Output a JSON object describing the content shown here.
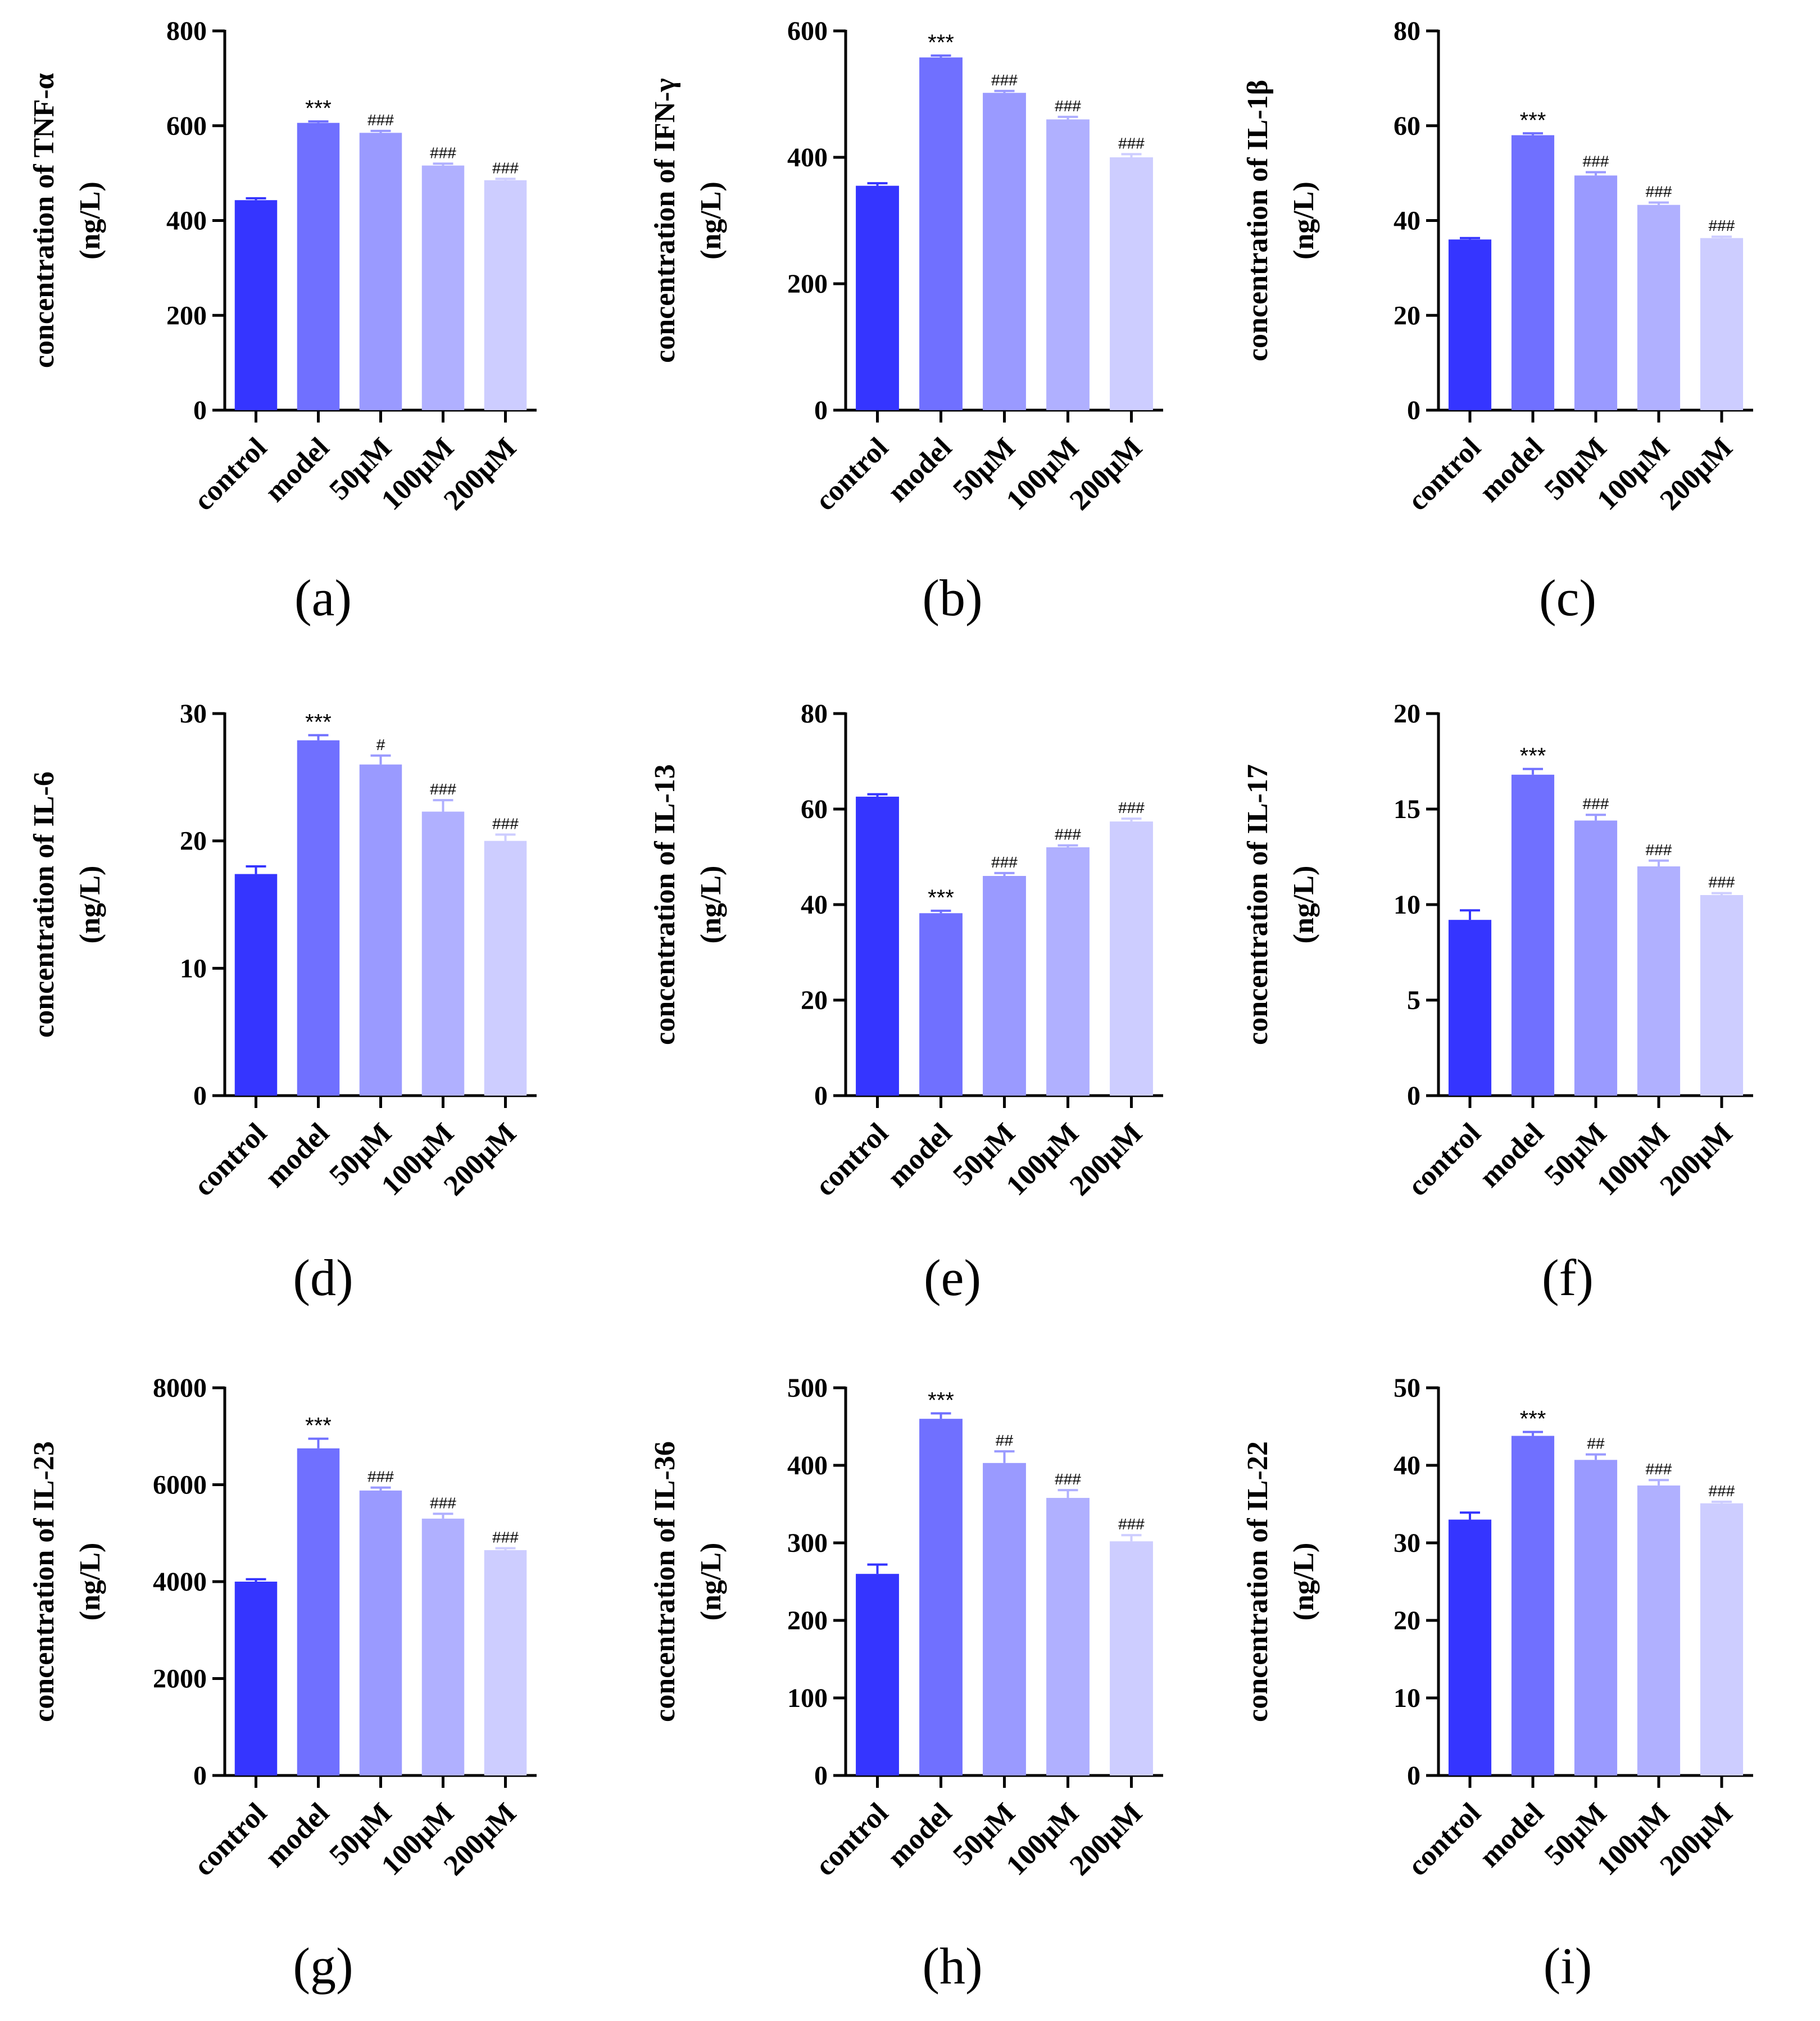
{
  "colors": {
    "bars": [
      "#3535ff",
      "#7070ff",
      "#9a9aff",
      "#b0b0ff",
      "#cdcdff"
    ],
    "axis": "#000000"
  },
  "chart_data": [
    {
      "panel": "(a)",
      "type": "bar",
      "categories": [
        "control",
        "model",
        "50μM",
        "100μM",
        "200μM"
      ],
      "values": [
        443,
        606,
        585,
        516,
        485
      ],
      "errors": [
        4,
        3,
        4,
        4,
        3
      ],
      "annotations": [
        "",
        "***",
        "###",
        "###",
        "###"
      ],
      "ylabel_line1": "concentration of TNF-α",
      "ylabel_line2": "(ng/L)",
      "ylim": [
        0,
        800
      ],
      "yticks": [
        "0",
        "200",
        "400",
        "600",
        "800"
      ]
    },
    {
      "panel": "(b)",
      "type": "bar",
      "categories": [
        "control",
        "model",
        "50μM",
        "100μM",
        "200μM"
      ],
      "values": [
        355,
        558,
        502,
        460,
        400
      ],
      "errors": [
        4,
        3,
        3,
        4,
        5
      ],
      "annotations": [
        "",
        "***",
        "###",
        "###",
        "###"
      ],
      "ylabel_line1": "concentration of IFN-γ",
      "ylabel_line2": "(ng/L)",
      "ylim": [
        0,
        600
      ],
      "yticks": [
        "0",
        "200",
        "400",
        "600"
      ]
    },
    {
      "panel": "(c)",
      "type": "bar",
      "categories": [
        "control",
        "model",
        "50μM",
        "100μM",
        "200μM"
      ],
      "values": [
        36,
        58,
        49.5,
        43.3,
        36.3
      ],
      "errors": [
        0.3,
        0.4,
        0.7,
        0.5,
        0.3
      ],
      "annotations": [
        "",
        "***",
        "###",
        "###",
        "###"
      ],
      "ylabel_line1": "concentration of IL-1β",
      "ylabel_line2": "(ng/L)",
      "ylim": [
        0,
        80
      ],
      "yticks": [
        "0",
        "20",
        "40",
        "60",
        "80"
      ]
    },
    {
      "panel": "(d)",
      "type": "bar",
      "categories": [
        "control",
        "model",
        "50μM",
        "100μM",
        "200μM"
      ],
      "values": [
        17.4,
        27.9,
        26,
        22.3,
        20
      ],
      "errors": [
        0.6,
        0.4,
        0.7,
        0.9,
        0.5
      ],
      "annotations": [
        "",
        "***",
        "#",
        "###",
        "###"
      ],
      "ylabel_line1": "concentration of IL-6",
      "ylabel_line2": "(ng/L)",
      "ylim": [
        0,
        30
      ],
      "yticks": [
        "0",
        "10",
        "20",
        "30"
      ]
    },
    {
      "panel": "(e)",
      "type": "bar",
      "categories": [
        "control",
        "model",
        "50μM",
        "100μM",
        "200μM"
      ],
      "values": [
        62.6,
        38.2,
        46,
        52,
        57.4
      ],
      "errors": [
        0.5,
        0.5,
        0.6,
        0.4,
        0.6
      ],
      "annotations": [
        "",
        "***",
        "###",
        "###",
        "###"
      ],
      "ylabel_line1": "concentration of IL-13",
      "ylabel_line2": "(ng/L)",
      "ylim": [
        0,
        80
      ],
      "yticks": [
        "0",
        "20",
        "40",
        "60",
        "80"
      ]
    },
    {
      "panel": "(f)",
      "type": "bar",
      "categories": [
        "control",
        "model",
        "50μM",
        "100μM",
        "200μM"
      ],
      "values": [
        9.2,
        16.8,
        14.4,
        12,
        10.5
      ],
      "errors": [
        0.5,
        0.3,
        0.3,
        0.3,
        0.1
      ],
      "annotations": [
        "",
        "***",
        "###",
        "###",
        "###"
      ],
      "ylabel_line1": "concentration of IL-17",
      "ylabel_line2": "(ng/L)",
      "ylim": [
        0,
        20
      ],
      "yticks": [
        "0",
        "5",
        "10",
        "15",
        "20"
      ]
    },
    {
      "panel": "(g)",
      "type": "bar",
      "categories": [
        "control",
        "model",
        "50μM",
        "100μM",
        "200μM"
      ],
      "values": [
        4000,
        6750,
        5880,
        5300,
        4650
      ],
      "errors": [
        50,
        200,
        60,
        100,
        40
      ],
      "annotations": [
        "",
        "***",
        "###",
        "###",
        "###"
      ],
      "ylabel_line1": "concentration of IL-23",
      "ylabel_line2": "(ng/L)",
      "ylim": [
        0,
        8000
      ],
      "yticks": [
        "0",
        "2000",
        "4000",
        "6000",
        "8000"
      ]
    },
    {
      "panel": "(h)",
      "type": "bar",
      "categories": [
        "control",
        "model",
        "50μM",
        "100μM",
        "200μM"
      ],
      "values": [
        260,
        460,
        403,
        358,
        302
      ],
      "errors": [
        12,
        7,
        15,
        10,
        8
      ],
      "annotations": [
        "",
        "***",
        "##",
        "###",
        "###"
      ],
      "ylabel_line1": "concentration of IL-36",
      "ylabel_line2": "(ng/L)",
      "ylim": [
        0,
        500
      ],
      "yticks": [
        "0",
        "100",
        "200",
        "300",
        "400",
        "500"
      ]
    },
    {
      "panel": "(i)",
      "type": "bar",
      "categories": [
        "control",
        "model",
        "50μM",
        "100μM",
        "200μM"
      ],
      "values": [
        33,
        43.8,
        40.7,
        37.4,
        35.1
      ],
      "errors": [
        0.9,
        0.5,
        0.7,
        0.7,
        0.2
      ],
      "annotations": [
        "",
        "***",
        "##",
        "###",
        "###"
      ],
      "ylabel_line1": "concentration of IL-22",
      "ylabel_line2": "(ng/L)",
      "ylim": [
        0,
        50
      ],
      "yticks": [
        "0",
        "10",
        "20",
        "30",
        "40",
        "50"
      ]
    }
  ]
}
